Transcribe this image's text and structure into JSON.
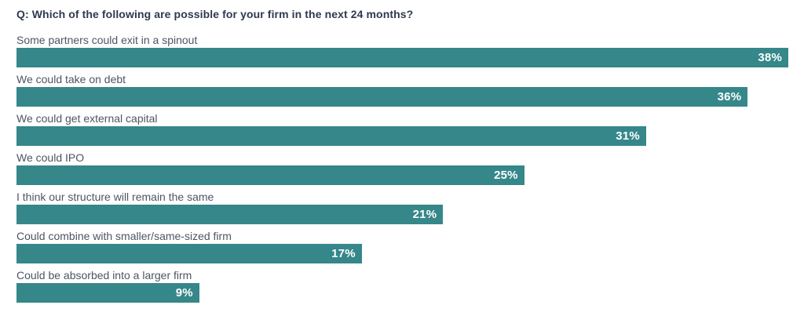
{
  "title": "Q: Which of the following are possible for your firm in the next 24 months?",
  "chart_data": {
    "type": "bar",
    "orientation": "horizontal",
    "title": "Q: Which of the following are possible for your firm in the next 24 months?",
    "categories": [
      "Some partners could exit in a spinout",
      "We could take on debt",
      "We could get external capital",
      "We could IPO",
      "I think our structure will remain the same",
      "Could combine with smaller/same-sized firm",
      "Could be absorbed into a larger firm"
    ],
    "values": [
      38,
      36,
      31,
      25,
      21,
      17,
      9
    ],
    "value_suffix": "%",
    "xlim": [
      0,
      38
    ],
    "grid": false,
    "legend": "none",
    "bar_color": "#35878a",
    "value_label_color": "#ffffff",
    "category_label_color": "#4d5563",
    "title_color": "#2e3a4e",
    "background_color": "#ffffff"
  }
}
